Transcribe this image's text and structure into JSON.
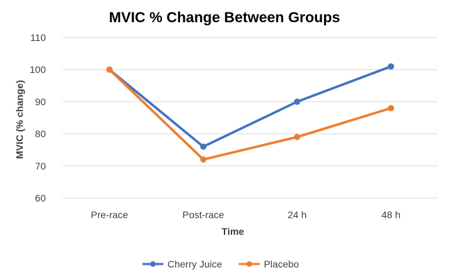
{
  "chart_data": {
    "type": "line",
    "title": "MVIC % Change Between Groups",
    "xlabel": "Time",
    "ylabel": "MVIC (% change)",
    "categories": [
      "Pre-race",
      "Post-race",
      "24 h",
      "48 h"
    ],
    "ylim": [
      60,
      110
    ],
    "yticks": [
      60,
      70,
      80,
      90,
      100,
      110
    ],
    "grid": true,
    "legend_position": "bottom",
    "series": [
      {
        "name": "Cherry Juice",
        "color": "#4472C4",
        "values": [
          100,
          76,
          90,
          101
        ]
      },
      {
        "name": "Placebo",
        "color": "#ED7D31",
        "values": [
          100,
          72,
          79,
          88
        ]
      }
    ]
  }
}
